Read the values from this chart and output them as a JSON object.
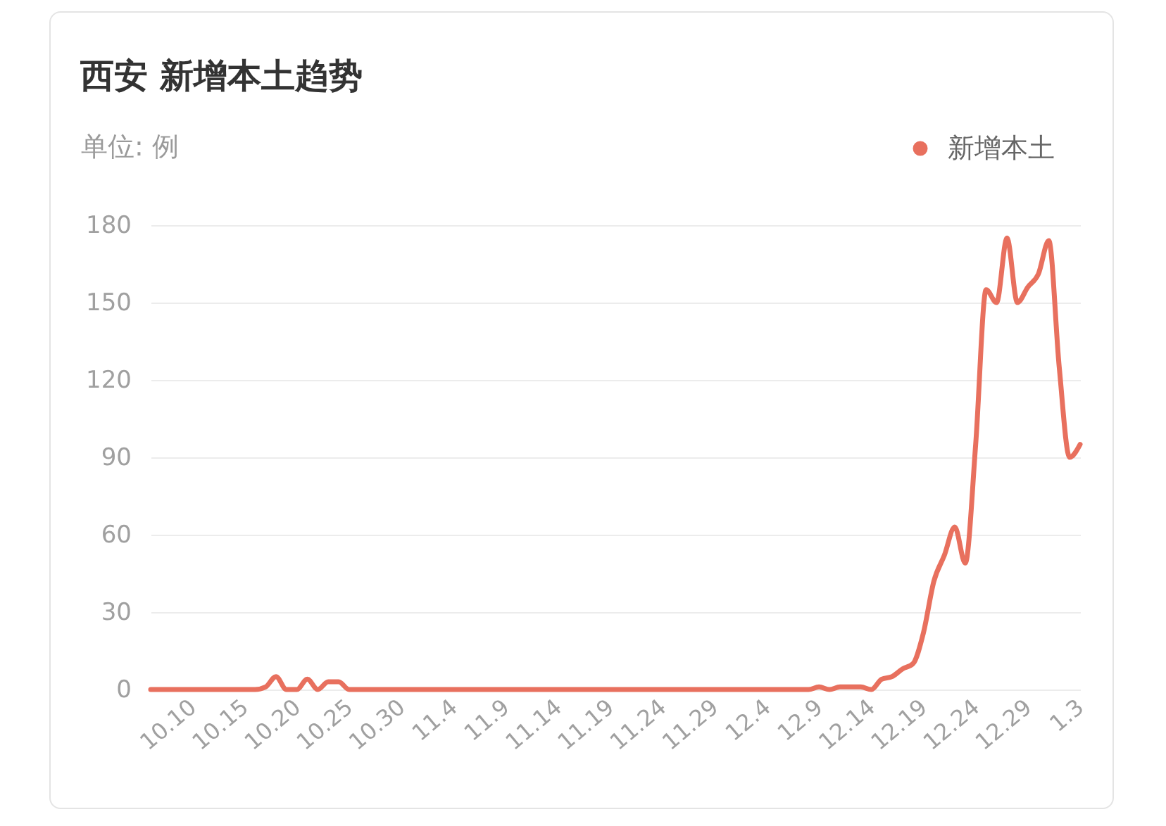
{
  "chart_data": {
    "type": "line",
    "title": "西安 新增本土趋势",
    "ylabel": "单位: 例",
    "categories": [
      null,
      null,
      null,
      null,
      "10.10",
      null,
      null,
      null,
      null,
      "10.15",
      null,
      null,
      null,
      null,
      "10.20",
      null,
      null,
      null,
      null,
      "10.25",
      null,
      null,
      null,
      null,
      "10.30",
      null,
      null,
      null,
      null,
      "11.4",
      null,
      null,
      null,
      null,
      "11.9",
      null,
      null,
      null,
      null,
      "11.14",
      null,
      null,
      null,
      null,
      "11.19",
      null,
      null,
      null,
      null,
      "11.24",
      null,
      null,
      null,
      null,
      "11.29",
      null,
      null,
      null,
      null,
      "12.4",
      null,
      null,
      null,
      null,
      "12.9",
      null,
      null,
      null,
      null,
      "12.14",
      null,
      null,
      null,
      null,
      "12.19",
      null,
      null,
      null,
      null,
      "12.24",
      null,
      null,
      null,
      null,
      "12.29",
      null,
      null,
      null,
      null,
      "1.3"
    ],
    "series": [
      {
        "name": "新增本土",
        "color": "#e8705e",
        "values": [
          0,
          0,
          0,
          0,
          0,
          0,
          0,
          0,
          0,
          0,
          0,
          1,
          5,
          0,
          0,
          4,
          0,
          3,
          3,
          0,
          0,
          0,
          0,
          0,
          0,
          0,
          0,
          0,
          0,
          0,
          0,
          0,
          0,
          0,
          0,
          0,
          0,
          0,
          0,
          0,
          0,
          0,
          0,
          0,
          0,
          0,
          0,
          0,
          0,
          0,
          0,
          0,
          0,
          0,
          0,
          0,
          0,
          0,
          0,
          0,
          0,
          0,
          0,
          0,
          1,
          0,
          1,
          1,
          1,
          0,
          4,
          5,
          8,
          10,
          22,
          42,
          52,
          63,
          49,
          95,
          155,
          150,
          175,
          150,
          156,
          161,
          174,
          125,
          90,
          95
        ]
      }
    ],
    "ylim": [
      0,
      180
    ],
    "yticks": [
      0,
      30,
      60,
      90,
      120,
      150,
      180
    ],
    "grid": "y",
    "legend": "top right"
  }
}
